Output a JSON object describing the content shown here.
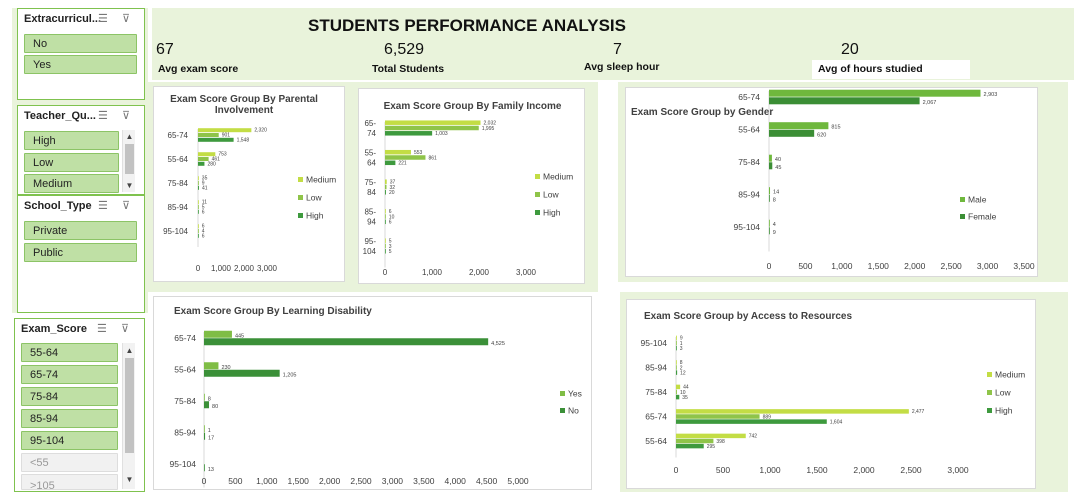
{
  "dashboard": {
    "title": "STUDENTS PERFORMANCE ANALYSIS",
    "kpis": [
      {
        "value": "67",
        "label": "Avg exam score"
      },
      {
        "value": "6,529",
        "label": "Total  Students"
      },
      {
        "value": "7",
        "label": "Avg sleep hour"
      },
      {
        "value": "20",
        "label": "Avg of hours studied"
      }
    ]
  },
  "slicers": [
    {
      "title": "Extracurricul...",
      "items": [
        "No",
        "Yes"
      ]
    },
    {
      "title": "Teacher_Qu...",
      "items": [
        "High",
        "Low",
        "Medium"
      ]
    },
    {
      "title": "School_Type",
      "items": [
        "Private",
        "Public"
      ]
    },
    {
      "title": "Exam_Score",
      "items": [
        "55-64",
        "65-74",
        "75-84",
        "85-94",
        "95-104"
      ],
      "dim_items": [
        "<55",
        ">105"
      ]
    }
  ],
  "icons": {
    "multiselect": "multi-select-icon",
    "clear_filter": "clear-filter-icon",
    "scroll_up": "scroll-up-icon",
    "scroll_down": "scroll-down-icon"
  },
  "colors": {
    "medium": "#c3dd45",
    "low": "#8fc449",
    "high": "#3e9a3e",
    "male": "#6fb83d",
    "female": "#3b8e35",
    "yes": "#7fbd45",
    "no": "#3b9038",
    "band": "#e9f3db",
    "slicer_border": "#7fc24e",
    "slicer_item": "#bfe0a5"
  },
  "chart_data": [
    {
      "id": "parental",
      "type": "bar",
      "title": "Exam Score Group By Parental Involvement",
      "categories": [
        "65-74",
        "55-64",
        "75-84",
        "85-94",
        "95-104"
      ],
      "category_labels": [
        "65-74",
        "55-64",
        "75-84",
        "85-94",
        "95-104"
      ],
      "series": [
        {
          "name": "Medium",
          "values": [
            2320,
            753,
            35,
            11,
            6
          ],
          "labels": [
            "2,320",
            "753",
            "35",
            "11",
            "6"
          ]
        },
        {
          "name": "Low",
          "values": [
            901,
            461,
            9,
            5,
            4
          ],
          "labels": [
            "901",
            "461",
            "9",
            "5",
            "4"
          ]
        },
        {
          "name": "High",
          "values": [
            1548,
            280,
            41,
            6,
            6
          ],
          "labels": [
            "1,548",
            "280",
            "41",
            "6",
            "6"
          ]
        }
      ],
      "colors": [
        "#c3dd45",
        "#8fc449",
        "#3e9a3e"
      ],
      "xlim": [
        0,
        3000
      ],
      "ticks": [
        "0",
        "1,000",
        "2,000",
        "3,000"
      ],
      "legend": "right"
    },
    {
      "id": "income",
      "type": "bar",
      "title": "Exam Score Group By Family Income",
      "categories": [
        "65-74",
        "55-64",
        "75-84",
        "85-94",
        "95-104"
      ],
      "category_labels": [
        [
          "65-",
          "74"
        ],
        [
          "55-",
          "64"
        ],
        [
          "75-",
          "84"
        ],
        [
          "85-",
          "94"
        ],
        [
          "95-",
          "104"
        ]
      ],
      "series": [
        {
          "name": "Medium",
          "values": [
            2032,
            553,
            37,
            6,
            5
          ],
          "labels": [
            "2,032",
            "553",
            "37",
            "6",
            "5"
          ]
        },
        {
          "name": "Low",
          "values": [
            1995,
            861,
            32,
            10,
            3
          ],
          "labels": [
            "1,995",
            "861",
            "32",
            "10",
            "3"
          ]
        },
        {
          "name": "High",
          "values": [
            1003,
            221,
            20,
            6,
            5
          ],
          "labels": [
            "1,003",
            "221",
            "20",
            "6",
            "5"
          ]
        }
      ],
      "colors": [
        "#c3dd45",
        "#8fc449",
        "#3e9a3e"
      ],
      "xlim": [
        0,
        3000
      ],
      "ticks": [
        "0",
        "1,000",
        "2,000",
        "3,000"
      ],
      "legend": "right"
    },
    {
      "id": "gender",
      "type": "bar",
      "title": "Exam Score Group by Gender",
      "categories": [
        "65-74",
        "55-64",
        "75-84",
        "85-94",
        "95-104"
      ],
      "category_labels": [
        "65-74",
        "55-64",
        "75-84",
        "85-94",
        "95-104"
      ],
      "series": [
        {
          "name": "Male",
          "values": [
            2903,
            815,
            40,
            14,
            4
          ],
          "labels": [
            "2,903",
            "815",
            "40",
            "14",
            "4"
          ]
        },
        {
          "name": "Female",
          "values": [
            2067,
            620,
            45,
            8,
            9
          ],
          "labels": [
            "2,067",
            "620",
            "45",
            "8",
            "9"
          ]
        }
      ],
      "colors": [
        "#6fb83d",
        "#3b8e35"
      ],
      "xlim": [
        0,
        3500
      ],
      "ticks": [
        "0",
        "500",
        "1,000",
        "1,500",
        "2,000",
        "2,500",
        "3,000",
        "3,500"
      ],
      "legend": "right"
    },
    {
      "id": "disability",
      "type": "bar",
      "title": "Exam Score Group By Learning Disability",
      "categories": [
        "65-74",
        "55-64",
        "75-84",
        "85-94",
        "95-104"
      ],
      "category_labels": [
        "65-74",
        "55-64",
        "75-84",
        "85-94",
        "95-104"
      ],
      "series": [
        {
          "name": "Yes",
          "values": [
            445,
            230,
            8,
            1,
            0
          ],
          "labels": [
            "445",
            "230",
            "8",
            "1",
            ""
          ]
        },
        {
          "name": "No",
          "values": [
            4525,
            1205,
            80,
            17,
            13
          ],
          "labels": [
            "4,525",
            "1,205",
            "80",
            "17",
            "13"
          ]
        }
      ],
      "colors": [
        "#7fbd45",
        "#3b9038"
      ],
      "xlim": [
        0,
        5000
      ],
      "ticks": [
        "0",
        "500",
        "1,000",
        "1,500",
        "2,000",
        "2,500",
        "3,000",
        "3,500",
        "4,000",
        "4,500",
        "5,000"
      ],
      "legend": "right"
    },
    {
      "id": "resources",
      "type": "bar",
      "title": "Exam Score Group by Access to Resources",
      "categories": [
        "95-104",
        "85-94",
        "75-84",
        "65-74",
        "55-64"
      ],
      "category_labels": [
        "95-104",
        "85-94",
        "75-84",
        "65-74",
        "55-64"
      ],
      "series": [
        {
          "name": "Medium",
          "values": [
            9,
            8,
            44,
            2477,
            742
          ],
          "labels": [
            "9",
            "8",
            "44",
            "2,477",
            "742"
          ]
        },
        {
          "name": "Low",
          "values": [
            1,
            2,
            10,
            889,
            398
          ],
          "labels": [
            "1",
            "2",
            "10",
            "889",
            "398"
          ]
        },
        {
          "name": "High",
          "values": [
            3,
            12,
            35,
            1604,
            295
          ],
          "labels": [
            "3",
            "12",
            "35",
            "1,604",
            "295"
          ]
        }
      ],
      "colors": [
        "#c3dd45",
        "#8fc449",
        "#3e9a3e"
      ],
      "xlim": [
        0,
        3000
      ],
      "ticks": [
        "0",
        "500",
        "1,000",
        "1,500",
        "2,000",
        "2,500",
        "3,000"
      ],
      "legend": "right"
    }
  ]
}
